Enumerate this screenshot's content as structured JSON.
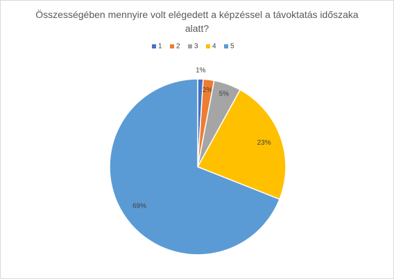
{
  "chart_data": {
    "type": "pie",
    "title": "Összességében mennyire volt elégedett a képzéssel a távoktatás időszaka alatt?",
    "categories": [
      "1",
      "2",
      "3",
      "4",
      "5"
    ],
    "values": [
      1,
      2,
      5,
      23,
      69
    ],
    "value_labels": [
      "1%",
      "2%",
      "5%",
      "23%",
      "69%"
    ],
    "colors": [
      "#4472c4",
      "#ed7d31",
      "#a5a5a5",
      "#ffc000",
      "#5b9bd5"
    ],
    "legend": "top"
  }
}
